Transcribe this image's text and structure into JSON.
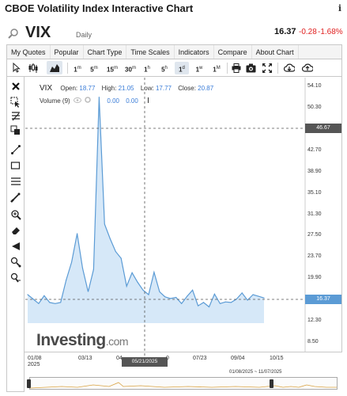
{
  "page_title": "CBOE Volatility Index Interactive Chart",
  "info_icon": "i",
  "symbol": "VIX",
  "period": "Daily",
  "last_price": "16.37",
  "change": "-0.28",
  "change_pct": "-1.68%",
  "menu": [
    "My Quotes",
    "Popular",
    "Chart Type",
    "Time Scales",
    "Indicators",
    "Compare",
    "About Chart"
  ],
  "timeframes": [
    {
      "main": "1",
      "sup": "m"
    },
    {
      "main": "5",
      "sup": "m"
    },
    {
      "main": "15",
      "sup": "m"
    },
    {
      "main": "30",
      "sup": "m"
    },
    {
      "main": "1",
      "sup": "h"
    },
    {
      "main": "5",
      "sup": "h"
    },
    {
      "main": "1",
      "sup": "d"
    },
    {
      "main": "1",
      "sup": "w"
    },
    {
      "main": "1",
      "sup": "M"
    }
  ],
  "legend": {
    "symbol": "VIX",
    "open_label": "Open:",
    "open": "18.77",
    "high_label": "High:",
    "high": "21.05",
    "low_label": "Low:",
    "low": "17.77",
    "close_label": "Close:",
    "close": "20.87"
  },
  "volume": {
    "label": "Volume (9)",
    "v1": "0.00",
    "v2": "0.00"
  },
  "watermark": {
    "main": "Investing",
    "suffix": ".com"
  },
  "crosshair": {
    "price_label": "46.67",
    "date_label": "05/21/2025"
  },
  "current_price_label": "16.37",
  "navigator_range": "01/08/2025 ~ 11/07/2025",
  "colors": {
    "line": "#5b9bd5",
    "area": "#d6e8f8",
    "negative": "#e02020",
    "label_bg": "#5b9bd5"
  },
  "chart_data": {
    "type": "area",
    "title": "VIX",
    "yticks": [
      "54.10",
      "50.30",
      "46.50",
      "42.70",
      "38.90",
      "35.10",
      "31.30",
      "27.50",
      "23.70",
      "19.90",
      "16.10",
      "12.30",
      "8.50"
    ],
    "xticks": [
      "01/08",
      "03/13",
      "04",
      "0",
      "07/23",
      "09/04",
      "10/15"
    ],
    "xsub": "2025",
    "ylim": [
      8.5,
      54.1
    ],
    "x": [
      "01/08",
      "01/15",
      "01/22",
      "01/29",
      "02/05",
      "02/12",
      "02/19",
      "02/26",
      "03/05",
      "03/12",
      "03/19",
      "03/26",
      "04/02",
      "04/08",
      "04/16",
      "04/23",
      "04/30",
      "05/07",
      "05/14",
      "05/21",
      "05/28",
      "06/04",
      "06/11",
      "06/18",
      "06/25",
      "07/02",
      "07/09",
      "07/16",
      "07/23",
      "07/30",
      "08/06",
      "08/13",
      "08/20",
      "08/27",
      "09/03",
      "09/10",
      "09/17",
      "09/24",
      "10/01",
      "10/08",
      "10/15",
      "10/22",
      "10/29",
      "11/07"
    ],
    "values": [
      17.0,
      16.2,
      15.4,
      16.8,
      15.6,
      15.4,
      15.6,
      19.6,
      22.8,
      27.9,
      21.7,
      17.5,
      21.5,
      52.3,
      29.6,
      27.0,
      24.7,
      23.5,
      18.5,
      20.9,
      19.2,
      17.8,
      17.0,
      21.0,
      17.5,
      16.6,
      16.3,
      16.5,
      15.4,
      16.7,
      17.8,
      15.0,
      15.6,
      14.8,
      17.1,
      15.4,
      15.7,
      15.6,
      16.2,
      17.3,
      16.0,
      17.0,
      16.7,
      16.4
    ]
  }
}
